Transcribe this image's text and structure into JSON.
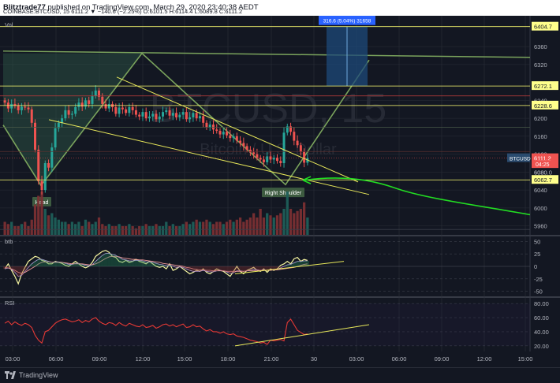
{
  "header": {
    "author": "Blitztrade77",
    "published": "published on TradingView.com, March 29, 2020 23:40:38 AEDT",
    "ohlc_line": "COINBASE:BTCUSD, 15  6111.2  ▼ −140.6 (−2.25%)  O:6101.5  H:6114.4  L:6089.8  C:6111.2"
  },
  "footer": {
    "brand": "TradingView"
  },
  "watermark": {
    "symbol": "BTCUSD, 15",
    "description": "Bitcoin / U.S. Dollar"
  },
  "colors": {
    "background": "#131722",
    "grid": "#2a2e39",
    "up": "#26a69a",
    "down": "#ef5350",
    "trendline": "#e8e85a",
    "pattern": "#7aa35c",
    "forecast": "#22dd22",
    "rsi": "#e53935",
    "hline": "#ffff70",
    "target_box": "#1e4a7a"
  },
  "chart_data": [
    {
      "type": "candlestick",
      "name": "price",
      "label": "Vol",
      "ylim": [
        5940,
        6420
      ],
      "price_ticks": [
        6360,
        6320,
        6240,
        6200,
        6160,
        6120,
        6080,
        6040,
        6000,
        5960
      ],
      "x_ticks": [
        "03:00",
        "06:00",
        "09:00",
        "12:00",
        "15:00",
        "18:00",
        "21:00",
        "30",
        "03:00",
        "06:00",
        "09:00",
        "12:00",
        "15:00"
      ],
      "candles_o": [
        6240,
        6235,
        6222,
        6232,
        6228,
        6218,
        6226,
        6224,
        6220,
        6190,
        6130,
        6060,
        6040,
        6100,
        6090,
        6135,
        6178,
        6190,
        6200,
        6218,
        6208,
        6210,
        6225,
        6235,
        6226,
        6240,
        6232,
        6250,
        6262,
        6248,
        6232,
        6222,
        6232,
        6225,
        6210,
        6224,
        6220,
        6212,
        6225,
        6218,
        6208,
        6204,
        6214,
        6200,
        6204,
        6210,
        6198,
        6204,
        6214,
        6218,
        6206,
        6212,
        6202,
        6208,
        6214,
        6198,
        6202,
        6212,
        6200,
        6205,
        6190,
        6180,
        6186,
        6175,
        6172,
        6164,
        6170,
        6162,
        6156,
        6160,
        6150,
        6145,
        6138,
        6130,
        6124,
        6120,
        6112,
        6108,
        6102,
        6115,
        6108,
        6112,
        6105,
        6100,
        6168,
        6182,
        6170,
        6150,
        6140,
        6125,
        6101
      ],
      "candles_c": [
        6235,
        6222,
        6232,
        6228,
        6218,
        6226,
        6224,
        6220,
        6190,
        6130,
        6060,
        6040,
        6100,
        6090,
        6135,
        6178,
        6190,
        6200,
        6218,
        6208,
        6210,
        6225,
        6235,
        6226,
        6240,
        6232,
        6250,
        6262,
        6248,
        6232,
        6222,
        6232,
        6225,
        6210,
        6224,
        6220,
        6212,
        6225,
        6218,
        6208,
        6204,
        6214,
        6200,
        6204,
        6210,
        6198,
        6204,
        6214,
        6218,
        6206,
        6212,
        6202,
        6208,
        6214,
        6198,
        6202,
        6212,
        6200,
        6205,
        6190,
        6180,
        6186,
        6175,
        6172,
        6164,
        6170,
        6162,
        6156,
        6160,
        6150,
        6145,
        6138,
        6130,
        6124,
        6120,
        6112,
        6108,
        6102,
        6115,
        6108,
        6112,
        6105,
        6100,
        6168,
        6182,
        6170,
        6150,
        6140,
        6125,
        6101,
        6111.2
      ],
      "volume": [
        0.3,
        0.25,
        0.3,
        0.2,
        0.2,
        0.25,
        0.3,
        0.2,
        0.35,
        0.7,
        0.9,
        1.0,
        0.6,
        0.45,
        0.5,
        0.4,
        0.35,
        0.3,
        0.3,
        0.25,
        0.3,
        0.25,
        0.3,
        0.2,
        0.35,
        0.3,
        0.25,
        0.3,
        0.4,
        0.25,
        0.2,
        0.25,
        0.2,
        0.2,
        0.25,
        0.2,
        0.2,
        0.25,
        0.2,
        0.15,
        0.2,
        0.2,
        0.25,
        0.2,
        0.2,
        0.25,
        0.2,
        0.2,
        0.3,
        0.2,
        0.25,
        0.2,
        0.2,
        0.25,
        0.3,
        0.25,
        0.3,
        0.35,
        0.3,
        0.3,
        0.35,
        0.3,
        0.25,
        0.3,
        0.3,
        0.25,
        0.3,
        0.35,
        0.3,
        0.35,
        0.4,
        0.3,
        0.35,
        0.4,
        0.5,
        0.4,
        0.6,
        0.4,
        0.5,
        0.45,
        0.4,
        0.45,
        0.5,
        0.6,
        1.0,
        0.6,
        0.5,
        0.55,
        0.6,
        0.75,
        0.4
      ],
      "price_labels": [
        {
          "text": "6404.7",
          "value": 6404.7,
          "style": "hline"
        },
        {
          "text": "6272.1",
          "value": 6272.1,
          "style": "hline"
        },
        {
          "text": "6228.6",
          "value": 6228.6,
          "style": "hline"
        },
        {
          "text": "BTCUSD",
          "value": 6111.2,
          "style": "symbol"
        },
        {
          "text": "6111.2",
          "value": 6111.2,
          "style": "current"
        },
        {
          "text": "04:25",
          "value": 6098,
          "style": "timer"
        },
        {
          "text": "6080.0",
          "value": 6080,
          "style": "plain"
        },
        {
          "text": "6062.7",
          "value": 6062.7,
          "style": "hline"
        }
      ],
      "annotations": [
        {
          "text": "Head",
          "kind": "pattern-label"
        },
        {
          "text": "Right Shoulder",
          "kind": "pattern-label"
        },
        {
          "text": "316.6 (5.04%) 31658",
          "kind": "target-box"
        }
      ]
    },
    {
      "type": "line",
      "name": "oscillator",
      "label": "btb",
      "ylim": [
        -60,
        60
      ],
      "ticks": [
        50,
        25,
        0,
        -25,
        -50
      ],
      "series": [
        {
          "color": "#f5f5a0",
          "values": [
            -5,
            5,
            -8,
            -20,
            -35,
            -15,
            -2,
            10,
            15,
            20,
            18,
            12,
            10,
            5,
            5,
            10,
            8,
            6,
            2,
            0,
            5,
            10,
            5,
            0,
            -3,
            0,
            8,
            20,
            25,
            30,
            32,
            28,
            20,
            18,
            10,
            8,
            12,
            8,
            10,
            14,
            10,
            8,
            5,
            10,
            5,
            0,
            -2,
            0,
            -5,
            5,
            -8,
            -5,
            0,
            -5,
            -10,
            -15,
            -12,
            -8,
            -10,
            -5,
            -12,
            -15,
            -10,
            -5,
            -8,
            -10,
            -15,
            -20,
            -10,
            0,
            -10,
            -15,
            -8,
            -5,
            -2,
            -8,
            -10,
            -5,
            -12,
            -5,
            -8,
            -5,
            2,
            5,
            10,
            5,
            15,
            18,
            10,
            14,
            12
          ]
        },
        {
          "color": "#b39ddb",
          "values": [
            -5,
            -3,
            -6,
            -12,
            -20,
            -18,
            -10,
            -2,
            5,
            10,
            14,
            14,
            12,
            10,
            8,
            9,
            9,
            8,
            6,
            4,
            4,
            6,
            6,
            4,
            2,
            1,
            3,
            10,
            16,
            22,
            26,
            26,
            24,
            22,
            18,
            14,
            13,
            11,
            11,
            12,
            12,
            11,
            9,
            9,
            8,
            6,
            4,
            3,
            1,
            2,
            0,
            -2,
            -1,
            -2,
            -5,
            -8,
            -10,
            -10,
            -10,
            -8,
            -10,
            -11,
            -11,
            -9,
            -8,
            -9,
            -11,
            -14,
            -13,
            -9,
            -9,
            -10,
            -9,
            -8,
            -6,
            -7,
            -8,
            -7,
            -8,
            -7,
            -7,
            -6,
            -3,
            0,
            3,
            4,
            7,
            10,
            10,
            11,
            11
          ]
        },
        {
          "color": "#ef9a9a",
          "values": [
            -2,
            -3,
            -5,
            -8,
            -12,
            -14,
            -12,
            -8,
            -4,
            0,
            5,
            8,
            9,
            9,
            8,
            8,
            8,
            8,
            7,
            6,
            5,
            5,
            5,
            5,
            4,
            3,
            3,
            5,
            8,
            12,
            16,
            19,
            20,
            20,
            19,
            17,
            16,
            15,
            14,
            14,
            13,
            13,
            12,
            11,
            10,
            9,
            8,
            6,
            5,
            4,
            3,
            2,
            1,
            0,
            -2,
            -3,
            -5,
            -6,
            -7,
            -7,
            -8,
            -8,
            -9,
            -9,
            -9,
            -9,
            -10,
            -10,
            -10,
            -10,
            -10,
            -10,
            -9,
            -9,
            -9,
            -8,
            -8,
            -8,
            -8,
            -8,
            -7,
            -7,
            -6,
            -5,
            -4,
            -3,
            -2,
            0,
            2,
            4,
            5
          ]
        }
      ]
    },
    {
      "type": "line",
      "name": "rsi",
      "label": "RSI",
      "ylim": [
        12,
        88
      ],
      "ticks": [
        80.0,
        60.0,
        40.0,
        20.0
      ],
      "tick_labels": [
        "80.00",
        "60.00",
        "40.00",
        "20.00"
      ],
      "series": [
        {
          "color": "#e53935",
          "values": [
            52,
            55,
            50,
            54,
            51,
            49,
            52,
            50,
            46,
            35,
            28,
            24,
            40,
            42,
            47,
            52,
            55,
            57,
            58,
            56,
            54,
            55,
            57,
            53,
            56,
            54,
            58,
            60,
            55,
            52,
            50,
            53,
            52,
            49,
            53,
            50,
            48,
            52,
            50,
            48,
            47,
            50,
            46,
            47,
            49,
            45,
            47,
            50,
            51,
            48,
            50,
            47,
            49,
            51,
            46,
            47,
            50,
            47,
            48,
            44,
            41,
            43,
            40,
            40,
            38,
            40,
            37,
            36,
            37,
            34,
            33,
            32,
            30,
            28,
            27,
            26,
            24,
            25,
            22,
            28,
            27,
            28,
            29,
            27,
            53,
            58,
            50,
            42,
            39,
            36,
            37
          ]
        }
      ]
    }
  ]
}
